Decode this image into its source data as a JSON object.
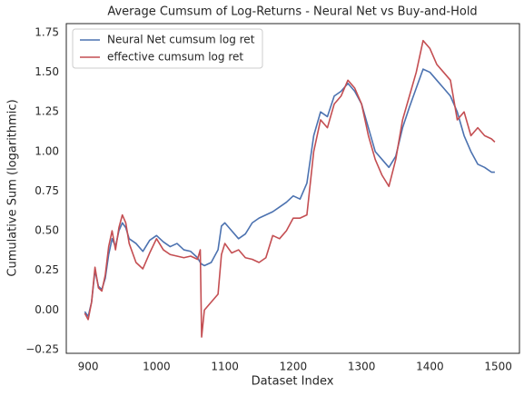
{
  "chart_data": {
    "type": "line",
    "title": "Average Cumsum of Log-Returns - Neural Net vs Buy-and-Hold",
    "x_label": "Dataset Index",
    "y_label": "Cumulative Sum (logarithmic)",
    "xlim": [
      868,
      1531
    ],
    "ylim": [
      -0.273,
      1.807
    ],
    "xticks": [
      900,
      1000,
      1100,
      1200,
      1300,
      1400,
      1500
    ],
    "yticks": [
      {
        "value": -0.25,
        "label": "−0.25"
      },
      {
        "value": 0,
        "label": "0.00"
      },
      0.25,
      {
        "value": 0.5,
        "label": "0.50"
      },
      0.75,
      {
        "value": 1,
        "label": "1.00"
      },
      1.25,
      {
        "value": 1.5,
        "label": "1.50"
      },
      1.75
    ],
    "grid": false,
    "legend": "upper left",
    "x": [
      895,
      900,
      905,
      910,
      915,
      920,
      925,
      930,
      935,
      940,
      945,
      950,
      955,
      960,
      970,
      980,
      990,
      1000,
      1010,
      1020,
      1030,
      1040,
      1050,
      1060,
      1064,
      1066,
      1070,
      1080,
      1090,
      1095,
      1100,
      1110,
      1120,
      1130,
      1140,
      1150,
      1160,
      1170,
      1180,
      1190,
      1200,
      1210,
      1220,
      1225,
      1230,
      1240,
      1250,
      1260,
      1270,
      1280,
      1290,
      1300,
      1310,
      1320,
      1330,
      1340,
      1350,
      1360,
      1370,
      1380,
      1390,
      1400,
      1410,
      1420,
      1430,
      1440,
      1450,
      1460,
      1470,
      1480,
      1490,
      1495
    ],
    "series": [
      {
        "name": "Neural Net cumsum log ret",
        "color": "#4c72b0",
        "values": [
          -0.01,
          -0.04,
          0.05,
          0.25,
          0.15,
          0.13,
          0.2,
          0.35,
          0.45,
          0.4,
          0.5,
          0.55,
          0.52,
          0.45,
          0.42,
          0.37,
          0.44,
          0.47,
          0.43,
          0.4,
          0.42,
          0.38,
          0.37,
          0.33,
          0.3,
          0.29,
          0.28,
          0.3,
          0.38,
          0.53,
          0.55,
          0.5,
          0.45,
          0.48,
          0.55,
          0.58,
          0.6,
          0.62,
          0.65,
          0.68,
          0.72,
          0.7,
          0.8,
          0.95,
          1.1,
          1.25,
          1.22,
          1.35,
          1.38,
          1.43,
          1.38,
          1.3,
          1.15,
          1.0,
          0.95,
          0.9,
          0.97,
          1.15,
          1.28,
          1.4,
          1.52,
          1.5,
          1.45,
          1.4,
          1.35,
          1.25,
          1.1,
          1.0,
          0.92,
          0.9,
          0.87,
          0.87
        ]
      },
      {
        "name": "effective cumsum log ret",
        "color": "#c44e52",
        "values": [
          -0.02,
          -0.06,
          0.05,
          0.27,
          0.14,
          0.12,
          0.22,
          0.4,
          0.5,
          0.38,
          0.52,
          0.6,
          0.55,
          0.42,
          0.3,
          0.26,
          0.36,
          0.45,
          0.38,
          0.35,
          0.34,
          0.33,
          0.34,
          0.32,
          0.38,
          -0.17,
          0.0,
          0.05,
          0.1,
          0.35,
          0.42,
          0.36,
          0.38,
          0.33,
          0.32,
          0.3,
          0.33,
          0.47,
          0.45,
          0.5,
          0.58,
          0.58,
          0.6,
          0.8,
          1.0,
          1.2,
          1.15,
          1.3,
          1.35,
          1.45,
          1.4,
          1.3,
          1.1,
          0.95,
          0.85,
          0.78,
          0.95,
          1.2,
          1.35,
          1.5,
          1.7,
          1.65,
          1.55,
          1.5,
          1.45,
          1.2,
          1.25,
          1.1,
          1.15,
          1.1,
          1.08,
          1.06
        ]
      }
    ]
  }
}
